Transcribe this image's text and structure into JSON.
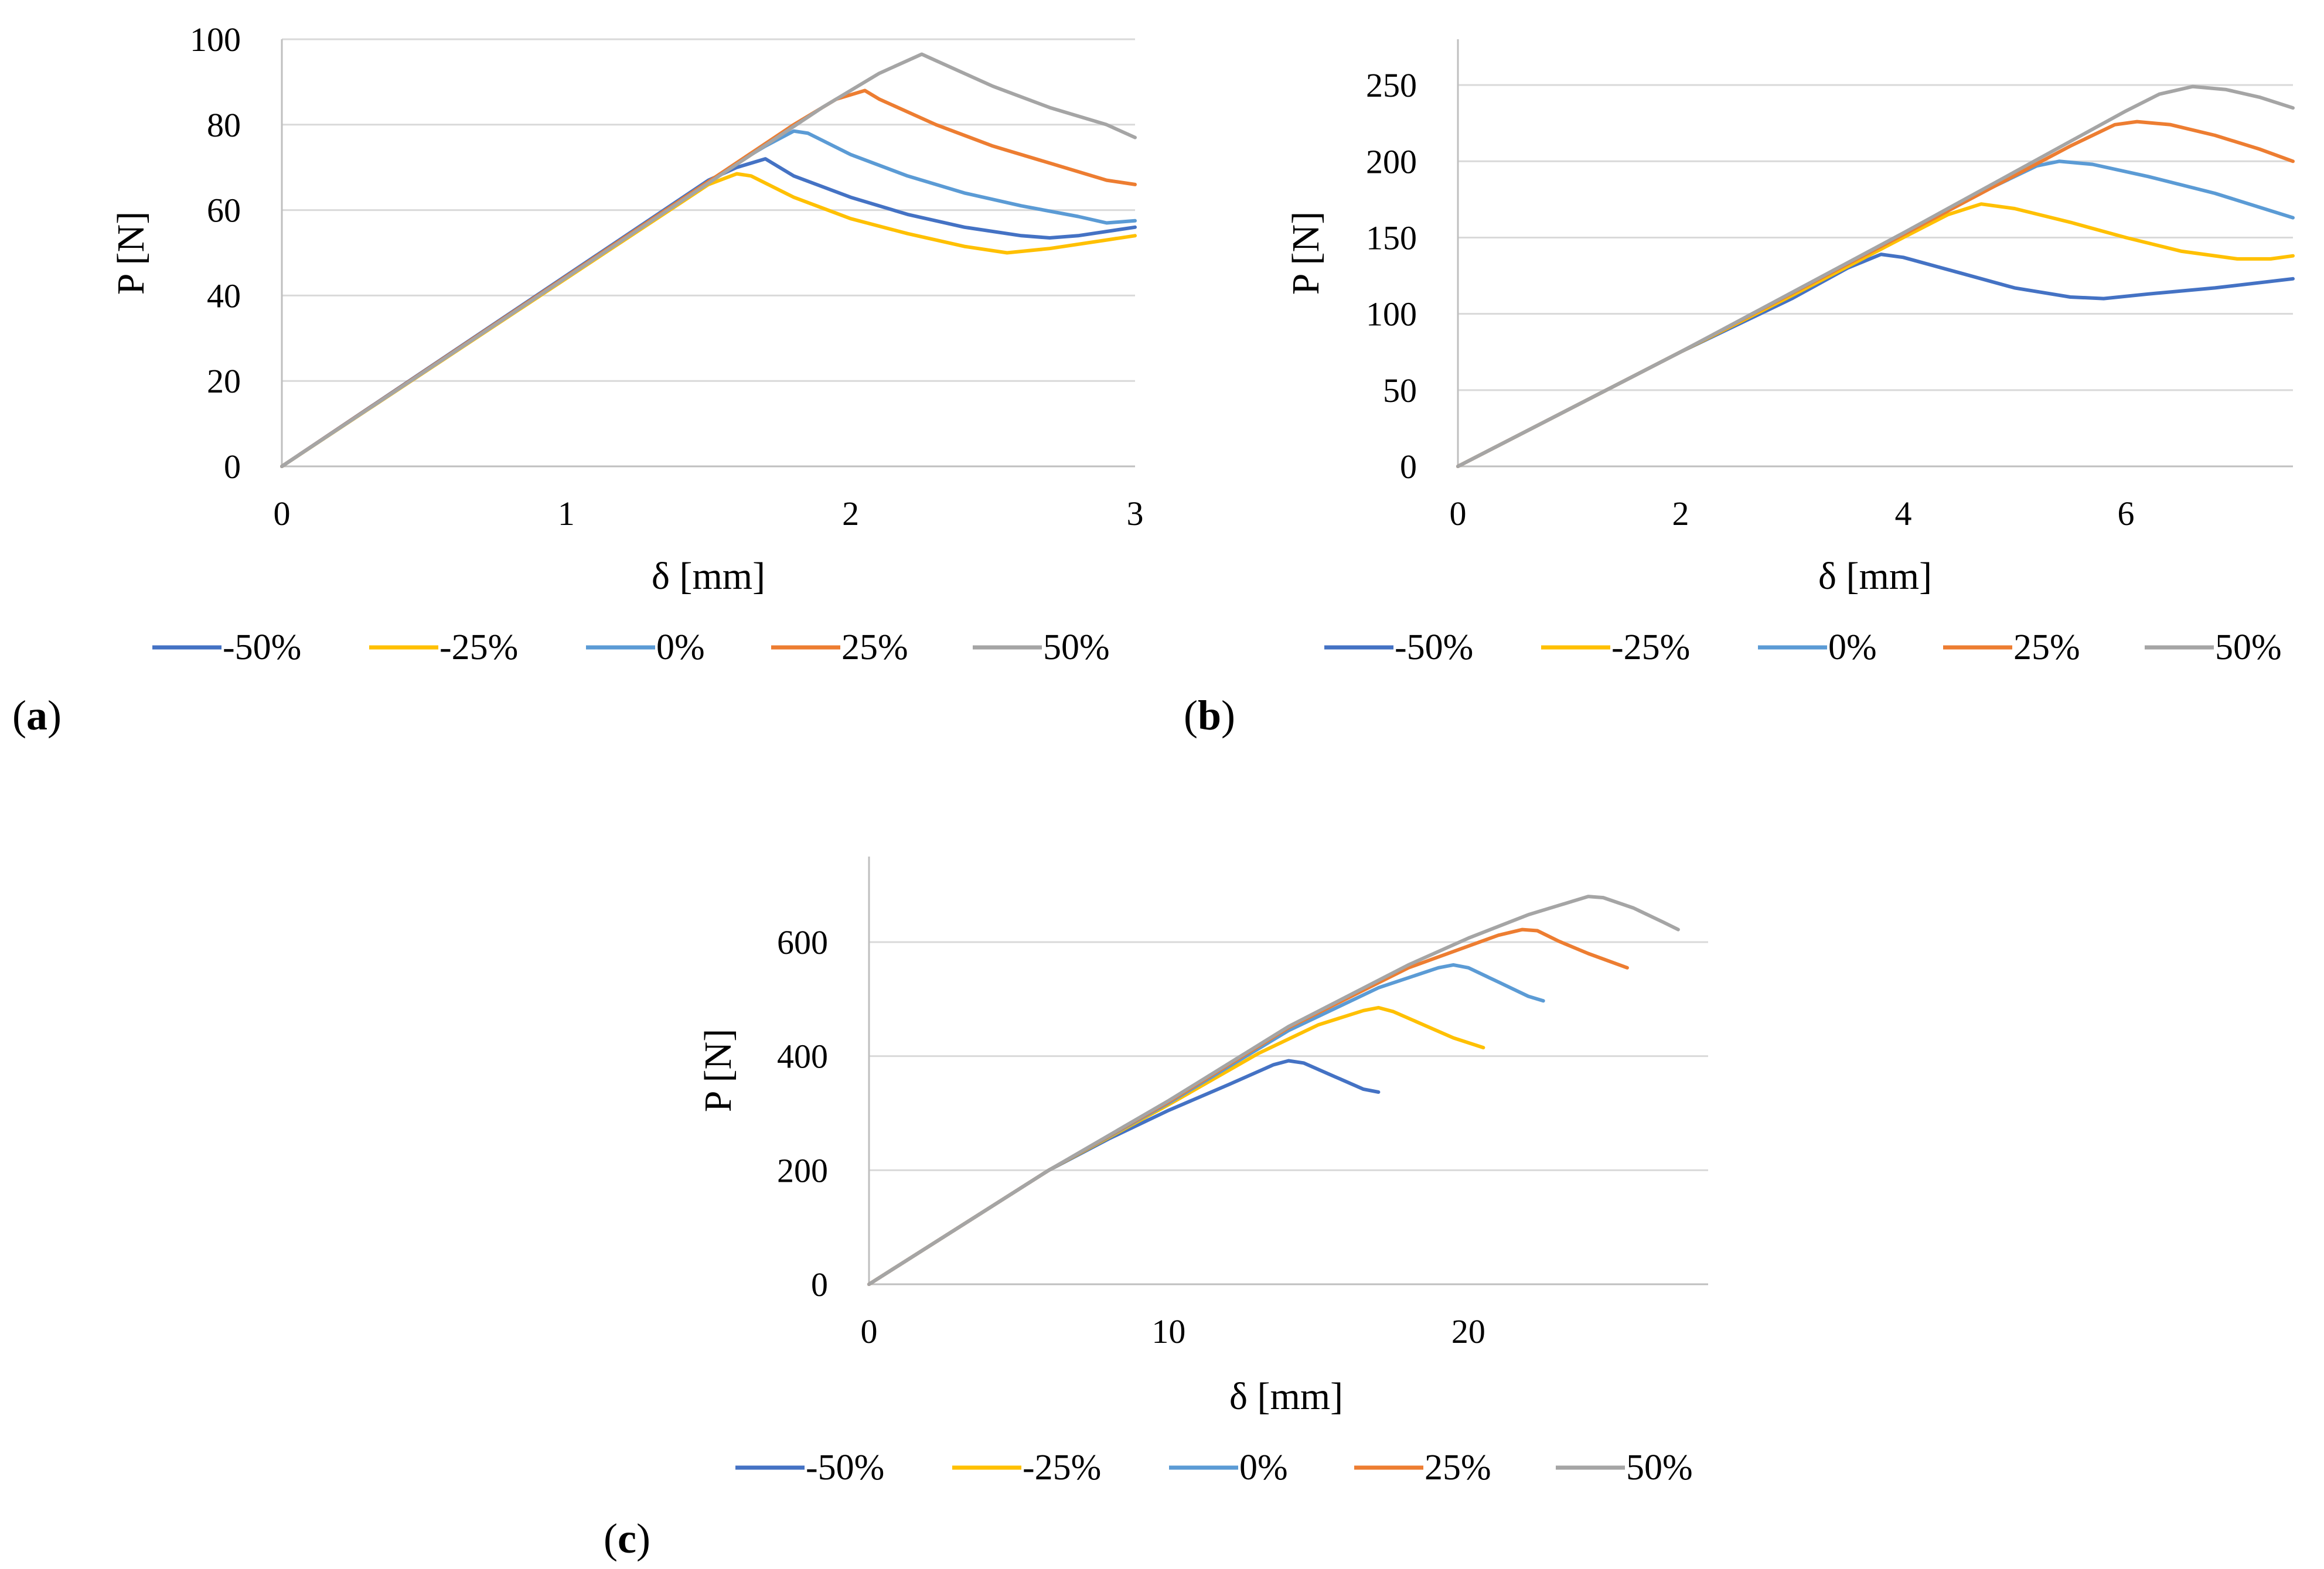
{
  "chart_data": [
    {
      "id": "a",
      "type": "line",
      "panel_label": "a",
      "xlabel": "δ [mm]",
      "ylabel": "P [N]",
      "xlim": [
        0,
        3
      ],
      "ylim": [
        0,
        100
      ],
      "xticks": [
        "0",
        "1",
        "2",
        "3"
      ],
      "yticks": [
        "0",
        "20",
        "40",
        "60",
        "80",
        "100"
      ],
      "series": [
        {
          "name": "-50%",
          "color": "#4472C4",
          "points": [
            [
              0,
              0
            ],
            [
              1.5,
              67
            ],
            [
              1.6,
              70
            ],
            [
              1.7,
              72
            ],
            [
              1.8,
              68
            ],
            [
              2.0,
              63
            ],
            [
              2.2,
              59
            ],
            [
              2.4,
              56
            ],
            [
              2.6,
              54
            ],
            [
              2.7,
              53.5
            ],
            [
              2.8,
              54
            ],
            [
              3.0,
              56
            ]
          ]
        },
        {
          "name": "-25%",
          "color": "#FFC000",
          "points": [
            [
              0,
              0
            ],
            [
              1.5,
              66
            ],
            [
              1.6,
              68.5
            ],
            [
              1.65,
              68
            ],
            [
              1.8,
              63
            ],
            [
              2.0,
              58
            ],
            [
              2.2,
              54.5
            ],
            [
              2.4,
              51.5
            ],
            [
              2.55,
              50
            ],
            [
              2.7,
              51
            ],
            [
              2.9,
              53
            ],
            [
              3.0,
              54
            ]
          ]
        },
        {
          "name": "0%",
          "color": "#5B9BD5",
          "points": [
            [
              0,
              0
            ],
            [
              1.6,
              71
            ],
            [
              1.7,
              75
            ],
            [
              1.8,
              78.5
            ],
            [
              1.85,
              78
            ],
            [
              2.0,
              73
            ],
            [
              2.2,
              68
            ],
            [
              2.4,
              64
            ],
            [
              2.6,
              61
            ],
            [
              2.8,
              58.5
            ],
            [
              2.9,
              57
            ],
            [
              3.0,
              57.5
            ]
          ]
        },
        {
          "name": "25%",
          "color": "#ED7D31",
          "points": [
            [
              0,
              0
            ],
            [
              1.8,
              80
            ],
            [
              1.95,
              86
            ],
            [
              2.05,
              88
            ],
            [
              2.1,
              86
            ],
            [
              2.3,
              80
            ],
            [
              2.5,
              75
            ],
            [
              2.7,
              71
            ],
            [
              2.9,
              67
            ],
            [
              3.0,
              66
            ]
          ]
        },
        {
          "name": "50%",
          "color": "#A5A5A5",
          "points": [
            [
              0,
              0
            ],
            [
              1.9,
              84
            ],
            [
              2.1,
              92
            ],
            [
              2.25,
              96.5
            ],
            [
              2.3,
              95
            ],
            [
              2.5,
              89
            ],
            [
              2.7,
              84
            ],
            [
              2.9,
              80
            ],
            [
              3.0,
              77
            ]
          ]
        }
      ]
    },
    {
      "id": "b",
      "type": "line",
      "panel_label": "b",
      "xlabel": "δ [mm]",
      "ylabel": "P [N]",
      "xlim": [
        0,
        7.5
      ],
      "ylim": [
        0,
        280
      ],
      "xticks": [
        "0",
        "2",
        "4",
        "6"
      ],
      "yticks": [
        "0",
        "50",
        "100",
        "150",
        "200",
        "250"
      ],
      "series": [
        {
          "name": "-50%",
          "color": "#4472C4",
          "points": [
            [
              0,
              0
            ],
            [
              2.0,
              75
            ],
            [
              3.0,
              110
            ],
            [
              3.5,
              130
            ],
            [
              3.8,
              139
            ],
            [
              4.0,
              137
            ],
            [
              4.5,
              127
            ],
            [
              5.0,
              117
            ],
            [
              5.5,
              111
            ],
            [
              5.8,
              110
            ],
            [
              6.2,
              113
            ],
            [
              6.8,
              117
            ],
            [
              7.5,
              123
            ]
          ]
        },
        {
          "name": "-25%",
          "color": "#FFC000",
          "points": [
            [
              0,
              0
            ],
            [
              2.0,
              75
            ],
            [
              3.0,
              112
            ],
            [
              4.0,
              150
            ],
            [
              4.4,
              165
            ],
            [
              4.7,
              172
            ],
            [
              5.0,
              169
            ],
            [
              5.5,
              160
            ],
            [
              6.0,
              150
            ],
            [
              6.5,
              141
            ],
            [
              7.0,
              136
            ],
            [
              7.3,
              136
            ],
            [
              7.5,
              138
            ]
          ]
        },
        {
          "name": "0%",
          "color": "#5B9BD5",
          "points": [
            [
              0,
              0
            ],
            [
              2.0,
              75
            ],
            [
              4.0,
              152
            ],
            [
              4.8,
              183
            ],
            [
              5.2,
              197
            ],
            [
              5.4,
              200
            ],
            [
              5.7,
              198
            ],
            [
              6.2,
              190
            ],
            [
              6.8,
              179
            ],
            [
              7.5,
              163
            ]
          ]
        },
        {
          "name": "25%",
          "color": "#ED7D31",
          "points": [
            [
              0,
              0
            ],
            [
              2.0,
              75
            ],
            [
              4.0,
              152
            ],
            [
              5.5,
              210
            ],
            [
              5.9,
              224
            ],
            [
              6.1,
              226
            ],
            [
              6.4,
              224
            ],
            [
              6.8,
              217
            ],
            [
              7.2,
              208
            ],
            [
              7.5,
              200
            ]
          ]
        },
        {
          "name": "50%",
          "color": "#A5A5A5",
          "points": [
            [
              0,
              0
            ],
            [
              2.0,
              75
            ],
            [
              4.0,
              153
            ],
            [
              5.5,
              213
            ],
            [
              6.0,
              233
            ],
            [
              6.3,
              244
            ],
            [
              6.6,
              249
            ],
            [
              6.9,
              247
            ],
            [
              7.2,
              242
            ],
            [
              7.5,
              235
            ]
          ]
        }
      ]
    },
    {
      "id": "c",
      "type": "line",
      "panel_label": "c",
      "xlabel": "δ [mm]",
      "ylabel": "P [N]",
      "xlim": [
        0,
        28
      ],
      "ylim": [
        0,
        750
      ],
      "xticks": [
        "0",
        "10",
        "20"
      ],
      "yticks": [
        "0",
        "200",
        "400",
        "600"
      ],
      "series": [
        {
          "name": "-50%",
          "color": "#4472C4",
          "points": [
            [
              0,
              0
            ],
            [
              6,
              200
            ],
            [
              8,
              255
            ],
            [
              10,
              305
            ],
            [
              12,
              350
            ],
            [
              13.5,
              385
            ],
            [
              14,
              392
            ],
            [
              14.5,
              388
            ],
            [
              15.5,
              365
            ],
            [
              16.5,
              342
            ],
            [
              17,
              337
            ]
          ]
        },
        {
          "name": "-25%",
          "color": "#FFC000",
          "points": [
            [
              0,
              0
            ],
            [
              6,
              200
            ],
            [
              10,
              315
            ],
            [
              13,
              405
            ],
            [
              15,
              455
            ],
            [
              16.5,
              480
            ],
            [
              17,
              485
            ],
            [
              17.5,
              478
            ],
            [
              18.5,
              455
            ],
            [
              19.5,
              432
            ],
            [
              20.5,
              415
            ]
          ]
        },
        {
          "name": "0%",
          "color": "#5B9BD5",
          "points": [
            [
              0,
              0
            ],
            [
              6,
              200
            ],
            [
              10,
              318
            ],
            [
              14,
              445
            ],
            [
              17,
              520
            ],
            [
              19,
              555
            ],
            [
              19.5,
              560
            ],
            [
              20,
              555
            ],
            [
              21,
              530
            ],
            [
              22,
              505
            ],
            [
              22.5,
              497
            ]
          ]
        },
        {
          "name": "25%",
          "color": "#ED7D31",
          "points": [
            [
              0,
              0
            ],
            [
              6,
              200
            ],
            [
              10,
              320
            ],
            [
              14,
              450
            ],
            [
              18,
              555
            ],
            [
              21,
              612
            ],
            [
              21.8,
              622
            ],
            [
              22.3,
              620
            ],
            [
              23,
              602
            ],
            [
              24,
              580
            ],
            [
              25.3,
              555
            ]
          ]
        },
        {
          "name": "50%",
          "color": "#A5A5A5",
          "points": [
            [
              0,
              0
            ],
            [
              6,
              200
            ],
            [
              10,
              322
            ],
            [
              14,
              452
            ],
            [
              18,
              560
            ],
            [
              20,
              607
            ],
            [
              22,
              648
            ],
            [
              23.5,
              672
            ],
            [
              24,
              680
            ],
            [
              24.5,
              678
            ],
            [
              25.5,
              660
            ],
            [
              26.5,
              635
            ],
            [
              27,
              622
            ]
          ]
        }
      ]
    }
  ]
}
